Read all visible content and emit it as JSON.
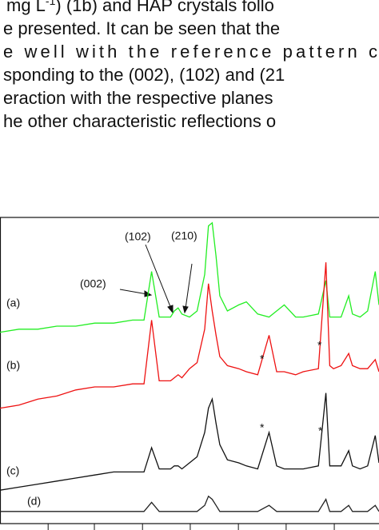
{
  "paragraph": {
    "lines": [
      [
        "mg L",
        "-1",
        ") (1b) and HAP crystals follo"
      ],
      [
        "e presented. It can be seen that the"
      ],
      [
        "e well with the reference pattern c"
      ],
      [
        "sponding to the (002), (102) and (21"
      ],
      [
        "eraction with the respective planes"
      ],
      [
        "he other characteristic reflections o"
      ]
    ]
  },
  "chart_data": {
    "type": "line",
    "x": [
      0,
      5,
      10,
      15,
      20,
      25,
      30,
      35,
      38,
      40,
      42,
      45,
      46,
      47,
      48,
      50,
      52,
      54,
      55,
      56,
      57,
      58,
      60,
      63,
      65,
      68,
      71,
      73,
      75,
      78,
      80,
      84,
      86,
      87,
      88,
      90,
      92,
      93,
      95,
      97,
      99,
      100
    ],
    "series": [
      {
        "name": "(a)",
        "color": "#22ee22",
        "values": [
          63,
          64,
          64,
          65,
          65,
          66,
          66,
          67,
          67,
          83,
          68,
          68,
          70,
          71,
          69,
          68,
          70,
          82,
          98,
          99,
          88,
          75,
          70,
          72,
          73,
          69,
          68,
          70,
          72,
          68,
          68,
          69,
          80,
          68,
          68,
          68,
          75,
          69,
          68,
          70,
          83,
          72
        ]
      },
      {
        "name": "(b)",
        "color": "#ee1111",
        "values": [
          38,
          39,
          41,
          42,
          44,
          45,
          45,
          46,
          46,
          67,
          47,
          47,
          48,
          49,
          48,
          51,
          53,
          64,
          79,
          70,
          62,
          55,
          52,
          51,
          50,
          49,
          62,
          50,
          50,
          49,
          50,
          51,
          86,
          52,
          51,
          52,
          56,
          52,
          51,
          51,
          54,
          50
        ]
      },
      {
        "name": "(c)",
        "color": "#111111",
        "values": [
          11,
          12,
          13,
          14,
          15,
          16,
          17,
          17,
          17,
          25,
          18,
          18,
          19,
          19,
          18,
          20,
          22,
          30,
          38,
          41,
          33,
          26,
          21,
          20,
          19,
          18,
          30,
          19,
          18,
          18,
          18,
          19,
          43,
          19,
          19,
          19,
          24,
          19,
          18,
          19,
          29,
          20
        ]
      },
      {
        "name": "(d)",
        "color": "#222222",
        "values": [
          4,
          4,
          4,
          4,
          4,
          4,
          4,
          4,
          4,
          7,
          4,
          4,
          4,
          4,
          4,
          4,
          4,
          6,
          9,
          8,
          6,
          4,
          4,
          4,
          4,
          4,
          6,
          4,
          4,
          4,
          4,
          4,
          8,
          4,
          4,
          4,
          6,
          4,
          4,
          4,
          6,
          4
        ]
      }
    ],
    "annotations": [
      "(002)",
      "(102)",
      "(210)",
      "*",
      "*",
      "*",
      "*"
    ],
    "xlim": [
      0,
      100
    ],
    "ylim": [
      0,
      100
    ],
    "xticks": [
      12.7,
      24.9,
      37.6,
      50.2,
      62.9,
      75.5,
      88.2
    ]
  }
}
